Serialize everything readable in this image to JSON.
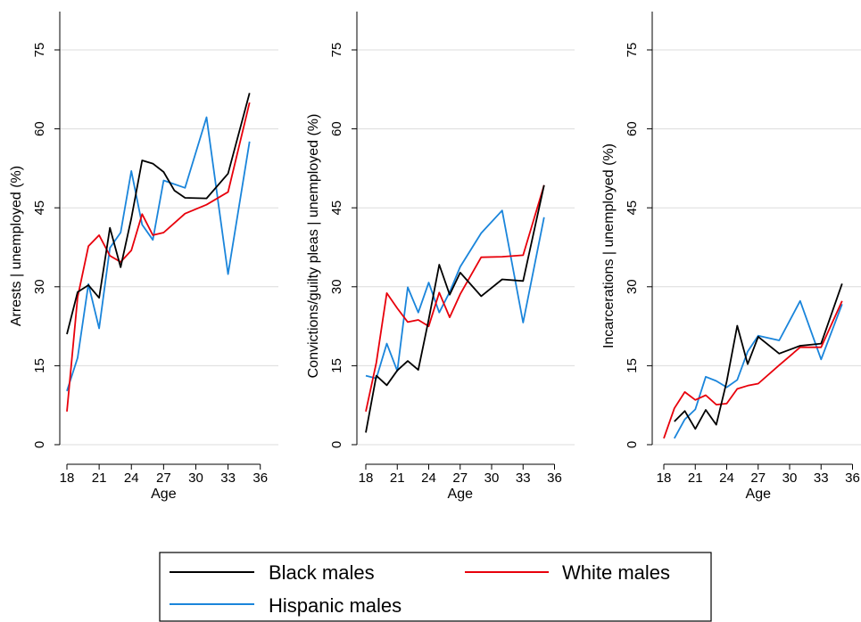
{
  "chart_data": [
    {
      "type": "line",
      "xlabel": "Age",
      "ylabel": "Arrests | unemployed (%)",
      "xticks": [
        18,
        21,
        24,
        27,
        30,
        33,
        36
      ],
      "yticks": [
        0,
        15,
        30,
        45,
        60,
        75
      ],
      "xlim": [
        17.5,
        36
      ],
      "ylim": [
        0,
        75
      ],
      "series": [
        {
          "name": "Black males",
          "color": "#000000",
          "x": [
            18,
            19,
            20,
            21,
            22,
            23,
            24,
            25,
            26,
            27,
            28,
            29,
            31,
            33,
            35
          ],
          "y": [
            21,
            29,
            30.3,
            27.9,
            41.2,
            33.7,
            43,
            54,
            53.4,
            51.8,
            48.3,
            46.9,
            46.8,
            51.5,
            66.8
          ]
        },
        {
          "name": "White males",
          "color": "#e8000b",
          "x": [
            18,
            19,
            20,
            21,
            22,
            23,
            24,
            25,
            26,
            27,
            29,
            31,
            33,
            35
          ],
          "y": [
            6.3,
            28,
            37.7,
            39.8,
            35.9,
            34.7,
            36.9,
            43.8,
            39.8,
            40.3,
            43.9,
            45.6,
            48,
            65
          ]
        },
        {
          "name": "Hispanic males",
          "color": "#1a85db",
          "x": [
            18,
            19,
            20,
            21,
            22,
            23,
            24,
            25,
            26,
            27,
            29,
            31,
            33,
            35
          ],
          "y": [
            10.2,
            16.5,
            30.5,
            22.1,
            37.4,
            40.3,
            52,
            41.8,
            38.9,
            50.2,
            48.8,
            62.2,
            32.4,
            57.6
          ]
        }
      ]
    },
    {
      "type": "line",
      "xlabel": "Age",
      "ylabel": "Convictions/guilty pleas | unemployed (%)",
      "xticks": [
        18,
        21,
        24,
        27,
        30,
        33,
        36
      ],
      "yticks": [
        0,
        15,
        30,
        45,
        60,
        75
      ],
      "xlim": [
        17.5,
        36
      ],
      "ylim": [
        0,
        75
      ],
      "series": [
        {
          "name": "Black males",
          "color": "#000000",
          "x": [
            18,
            19,
            20,
            21,
            22,
            23,
            24,
            25,
            26,
            27,
            29,
            31,
            33,
            35
          ],
          "y": [
            2.3,
            13.1,
            11.3,
            14.1,
            15.9,
            14.2,
            23.8,
            34.2,
            28.5,
            32.7,
            28.2,
            31.4,
            31.1,
            49.3
          ]
        },
        {
          "name": "White males",
          "color": "#e8000b",
          "x": [
            18,
            19,
            20,
            21,
            22,
            23,
            24,
            25,
            26,
            27,
            29,
            31,
            33,
            35
          ],
          "y": [
            6.3,
            15.6,
            28.8,
            25.9,
            23.3,
            23.7,
            22.5,
            28.9,
            24.2,
            28.6,
            35.6,
            35.7,
            36,
            49.3
          ]
        },
        {
          "name": "Hispanic males",
          "color": "#1a85db",
          "x": [
            18,
            19,
            20,
            21,
            22,
            23,
            24,
            25,
            26,
            27,
            29,
            31,
            33,
            35
          ],
          "y": [
            13.1,
            12.6,
            19.2,
            14,
            29.9,
            25.1,
            30.8,
            25.1,
            29,
            33.8,
            40.2,
            44.5,
            23.2,
            43.2
          ]
        }
      ]
    },
    {
      "type": "line",
      "xlabel": "Age",
      "ylabel": "Incarcerations | unemployed (%)",
      "xticks": [
        18,
        21,
        24,
        27,
        30,
        33,
        36
      ],
      "yticks": [
        0,
        15,
        30,
        45,
        60,
        75
      ],
      "xlim": [
        17.5,
        36
      ],
      "ylim": [
        0,
        75
      ],
      "series": [
        {
          "name": "Black males",
          "color": "#000000",
          "x": [
            19,
            20,
            21,
            22,
            23,
            24,
            25,
            26,
            27,
            29,
            31,
            33,
            35
          ],
          "y": [
            4.4,
            6.4,
            3,
            6.6,
            3.8,
            12,
            22.6,
            15.3,
            20.5,
            17.3,
            18.8,
            19.2,
            30.6
          ]
        },
        {
          "name": "White males",
          "color": "#e8000b",
          "x": [
            18,
            19,
            20,
            21,
            22,
            23,
            24,
            25,
            26,
            27,
            29,
            31,
            33,
            35
          ],
          "y": [
            1.2,
            6.9,
            10,
            8.5,
            9.4,
            7.6,
            7.8,
            10.6,
            11.2,
            11.6,
            15.1,
            18.5,
            18.5,
            27.3
          ]
        },
        {
          "name": "Hispanic males",
          "color": "#1a85db",
          "x": [
            19,
            20,
            21,
            22,
            23,
            24,
            25,
            26,
            27,
            29,
            31,
            33,
            35
          ],
          "y": [
            1.2,
            4.8,
            6.7,
            12.9,
            12.1,
            10.9,
            12.3,
            17.7,
            20.7,
            19.8,
            27.3,
            16.2,
            26.7
          ]
        }
      ]
    }
  ],
  "legend": {
    "items": [
      {
        "label": "Black males",
        "color": "#000000"
      },
      {
        "label": "White males",
        "color": "#e8000b"
      },
      {
        "label": "Hispanic males",
        "color": "#1a85db"
      }
    ]
  }
}
